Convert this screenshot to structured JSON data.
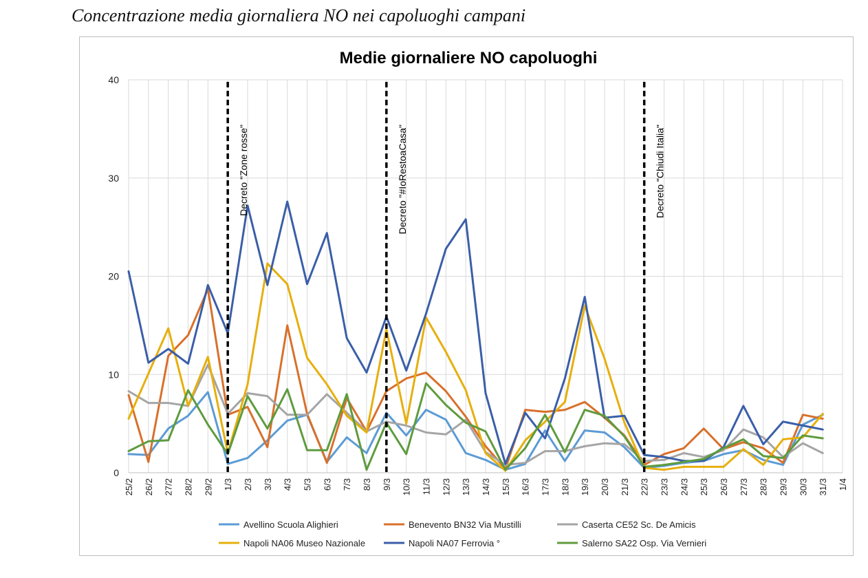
{
  "page": {
    "caption": "Concentrazione media giornaliera NO nei capoluoghi campani"
  },
  "chart_data": {
    "type": "line",
    "title": "Medie giornaliere NO capoluoghi",
    "xlabel": "",
    "ylabel": "",
    "ylim": [
      0,
      40
    ],
    "yticks": [
      "0",
      "10",
      "20",
      "30",
      "40"
    ],
    "grid": true,
    "legend_position": "bottom",
    "x": [
      "25/2",
      "26/2",
      "27/2",
      "28/2",
      "29/2",
      "1/3",
      "2/3",
      "3/3",
      "4/3",
      "5/3",
      "6/3",
      "7/3",
      "8/3",
      "9/3",
      "10/3",
      "11/3",
      "12/3",
      "13/3",
      "14/3",
      "15/3",
      "16/3",
      "17/3",
      "18/3",
      "19/3",
      "20/3",
      "21/3",
      "22/3",
      "23/3",
      "24/3",
      "25/3",
      "26/3",
      "27/3",
      "28/3",
      "29/3",
      "30/3",
      "31/3",
      "1/4"
    ],
    "series": [
      {
        "name": "Avellino Scuola Alighieri",
        "color": "#5B9BD5",
        "values": [
          1.9,
          1.8,
          4.5,
          5.8,
          8.2,
          0.9,
          1.5,
          3.3,
          5.3,
          5.9,
          1.1,
          3.6,
          2.0,
          6.1,
          3.8,
          6.4,
          5.4,
          2.0,
          1.3,
          0.3,
          0.9,
          4.3,
          1.2,
          4.3,
          4.1,
          2.6,
          0.5,
          0.7,
          1.0,
          1.2,
          1.9,
          2.3,
          1.3,
          0.8,
          4.9,
          5.9,
          null
        ]
      },
      {
        "name": "Benevento BN32 Via Mustilli",
        "color": "#D8702B",
        "values": [
          7.9,
          1.1,
          11.9,
          14.0,
          18.7,
          5.9,
          6.7,
          2.6,
          15.0,
          6.0,
          1.0,
          7.6,
          4.2,
          8.3,
          9.6,
          10.2,
          8.3,
          5.7,
          2.7,
          0.4,
          6.4,
          6.2,
          6.4,
          7.2,
          5.6,
          3.8,
          0.8,
          1.9,
          2.5,
          4.5,
          2.4,
          3.1,
          2.5,
          1.0,
          5.9,
          5.5,
          null
        ]
      },
      {
        "name": "Caserta CE52 Sc. De Amicis",
        "color": "#A5A5A5",
        "values": [
          8.3,
          7.1,
          7.1,
          6.8,
          11.0,
          6.0,
          8.1,
          7.8,
          5.9,
          5.9,
          8.0,
          6.1,
          4.2,
          5.2,
          4.8,
          4.1,
          3.9,
          5.4,
          2.1,
          0.8,
          1.0,
          2.2,
          2.2,
          2.7,
          3.0,
          2.9,
          1.2,
          1.3,
          2.0,
          1.6,
          2.3,
          4.4,
          3.6,
          1.6,
          3.0,
          2.0,
          null
        ]
      },
      {
        "name": "Napoli NA06 Museo Nazionale",
        "color": "#E6AF0C",
        "values": [
          5.5,
          10.1,
          14.7,
          6.8,
          11.8,
          2.0,
          9.0,
          21.3,
          19.2,
          11.7,
          9.0,
          5.8,
          4.1,
          14.6,
          5.0,
          15.8,
          12.3,
          8.4,
          2.0,
          0.2,
          3.3,
          5.2,
          7.2,
          17.0,
          11.6,
          5.1,
          0.5,
          0.3,
          0.6,
          0.6,
          0.6,
          2.4,
          0.8,
          3.4,
          3.6,
          6.0,
          null
        ]
      },
      {
        "name": "Napoli NA07 Ferrovia °",
        "color": "#3A5EA8",
        "values": [
          20.5,
          11.2,
          12.6,
          11.1,
          19.1,
          14.2,
          27.2,
          19.1,
          27.6,
          19.2,
          24.4,
          13.7,
          10.2,
          15.9,
          10.4,
          16.2,
          22.8,
          25.8,
          8.1,
          0.9,
          6.1,
          3.5,
          9.6,
          17.9,
          5.6,
          5.8,
          1.8,
          1.6,
          1.2,
          1.2,
          2.6,
          6.8,
          2.9,
          5.2,
          4.8,
          4.4,
          null
        ]
      },
      {
        "name": "Salerno SA22 Osp. Via Vernieri",
        "color": "#5E9B3E",
        "values": [
          2.2,
          3.2,
          3.3,
          8.4,
          4.9,
          1.9,
          7.8,
          4.5,
          8.5,
          2.3,
          2.3,
          8.0,
          0.3,
          5.1,
          1.9,
          9.1,
          6.9,
          5.1,
          4.2,
          0.3,
          2.5,
          5.9,
          2.1,
          6.4,
          5.8,
          3.7,
          0.6,
          0.8,
          1.1,
          1.4,
          2.5,
          3.4,
          1.7,
          1.5,
          3.8,
          3.5,
          null
        ]
      }
    ],
    "annotations": [
      {
        "x": "1/3",
        "label": "Decreto \"Zone rosse\""
      },
      {
        "x": "9/3",
        "label": "Decreto \"#IoRestoaCasa\""
      },
      {
        "x": "22/3",
        "label": "Decreto \"Chiudi Italia\""
      }
    ]
  }
}
